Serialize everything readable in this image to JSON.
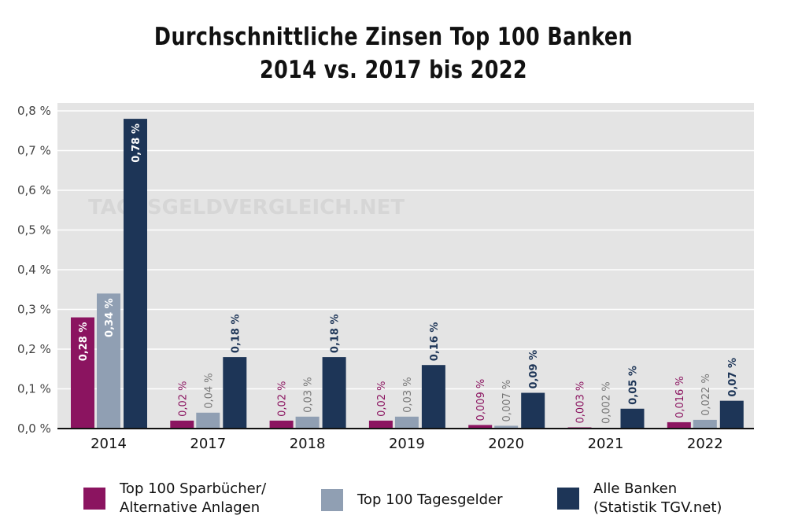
{
  "chart_data": {
    "type": "bar",
    "title": [
      "Durchschnittliche Zinsen Top 100 Banken",
      "2014 vs. 2017 bis 2022"
    ],
    "xlabel": "",
    "ylabel": "",
    "ylim": [
      0,
      0.8
    ],
    "yticks": [
      0,
      0.1,
      0.2,
      0.3,
      0.4,
      0.5,
      0.6,
      0.7,
      0.8
    ],
    "ytick_labels": [
      "0,0 %",
      "0,1 %",
      "0,2 %",
      "0,3 %",
      "0,4 %",
      "0,5 %",
      "0,6 %",
      "0,7 %",
      "0,8 %"
    ],
    "grid": true,
    "legend_position": "bottom",
    "categories": [
      "2014",
      "2017",
      "2018",
      "2019",
      "2020",
      "2021",
      "2022"
    ],
    "series": [
      {
        "name": "Top 100 Sparbücher/ Alternative Anlagen",
        "legend_lines": [
          "Top 100 Sparbücher/",
          "Alternative Anlagen"
        ],
        "color": "#8b1460",
        "label_color": "#8b1460",
        "values": [
          0.28,
          0.02,
          0.02,
          0.02,
          0.009,
          0.003,
          0.016
        ],
        "labels": [
          "0,28 %",
          "0,02 %",
          "0,02 %",
          "0,02 %",
          "0,009 %",
          "0,003 %",
          "0,016 %"
        ]
      },
      {
        "name": "Top 100 Tagesgelder",
        "legend_lines": [
          "Top 100 Tagesgelder"
        ],
        "color": "#909fb3",
        "label_color": "#777777",
        "values": [
          0.34,
          0.04,
          0.03,
          0.03,
          0.007,
          0.002,
          0.022
        ],
        "labels": [
          "0,34 %",
          "0,04 %",
          "0,03 %",
          "0,03 %",
          "0,007 %",
          "0,002 %",
          "0,022 %"
        ]
      },
      {
        "name": "Alle Banken (Statistik TGV.net)",
        "legend_lines": [
          "Alle Banken",
          "(Statistik TGV.net)"
        ],
        "color": "#1d3557",
        "label_color": "#1d3557",
        "values": [
          0.78,
          0.18,
          0.18,
          0.16,
          0.09,
          0.05,
          0.07
        ],
        "labels": [
          "0,78 %",
          "0,18 %",
          "0,18 %",
          "0,16 %",
          "0,09 %",
          "0,05 %",
          "0,07 %"
        ]
      }
    ],
    "watermark": "TAGESGELDVERGLEICH.NET"
  }
}
